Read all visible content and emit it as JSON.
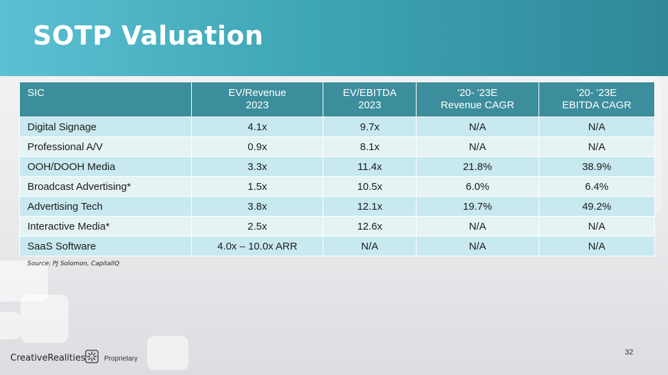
{
  "slide": {
    "title": "SOTP Valuation",
    "page_number": "32",
    "source": "Source: PJ Solomon, CapitalIQ"
  },
  "footer": {
    "logo_text": "CreativeRealities",
    "proprietary": "Proprietary"
  },
  "table": {
    "headers": [
      {
        "line1": "SIC",
        "line2": ""
      },
      {
        "line1": "EV/Revenue",
        "line2": "2023"
      },
      {
        "line1": "EV/EBITDA",
        "line2": "2023"
      },
      {
        "line1": "'20- '23E",
        "line2": "Revenue CAGR"
      },
      {
        "line1": "'20- '23E",
        "line2": "EBITDA CAGR"
      }
    ],
    "rows": [
      [
        "Digital Signage",
        "4.1x",
        "9.7x",
        "N/A",
        "N/A"
      ],
      [
        "Professional A/V",
        "0.9x",
        "8.1x",
        "N/A",
        "N/A"
      ],
      [
        "OOH/DOOH Media",
        "3.3x",
        "11.4x",
        "21.8%",
        "38.9%"
      ],
      [
        "Broadcast Advertising*",
        "1.5x",
        "10.5x",
        "6.0%",
        "6.4%"
      ],
      [
        "Advertising Tech",
        "3.8x",
        "12.1x",
        "19.7%",
        "49.2%"
      ],
      [
        "Interactive Media*",
        "2.5x",
        "12.6x",
        "N/A",
        "N/A"
      ],
      [
        "SaaS Software",
        "4.0x – 10.0x ARR",
        "N/A",
        "N/A",
        "N/A"
      ]
    ]
  },
  "colors": {
    "header_band": "#3fa6b5",
    "table_header": "#3d8e9c",
    "row_odd": "#c8e9ef",
    "row_even": "#e5f3f5"
  }
}
